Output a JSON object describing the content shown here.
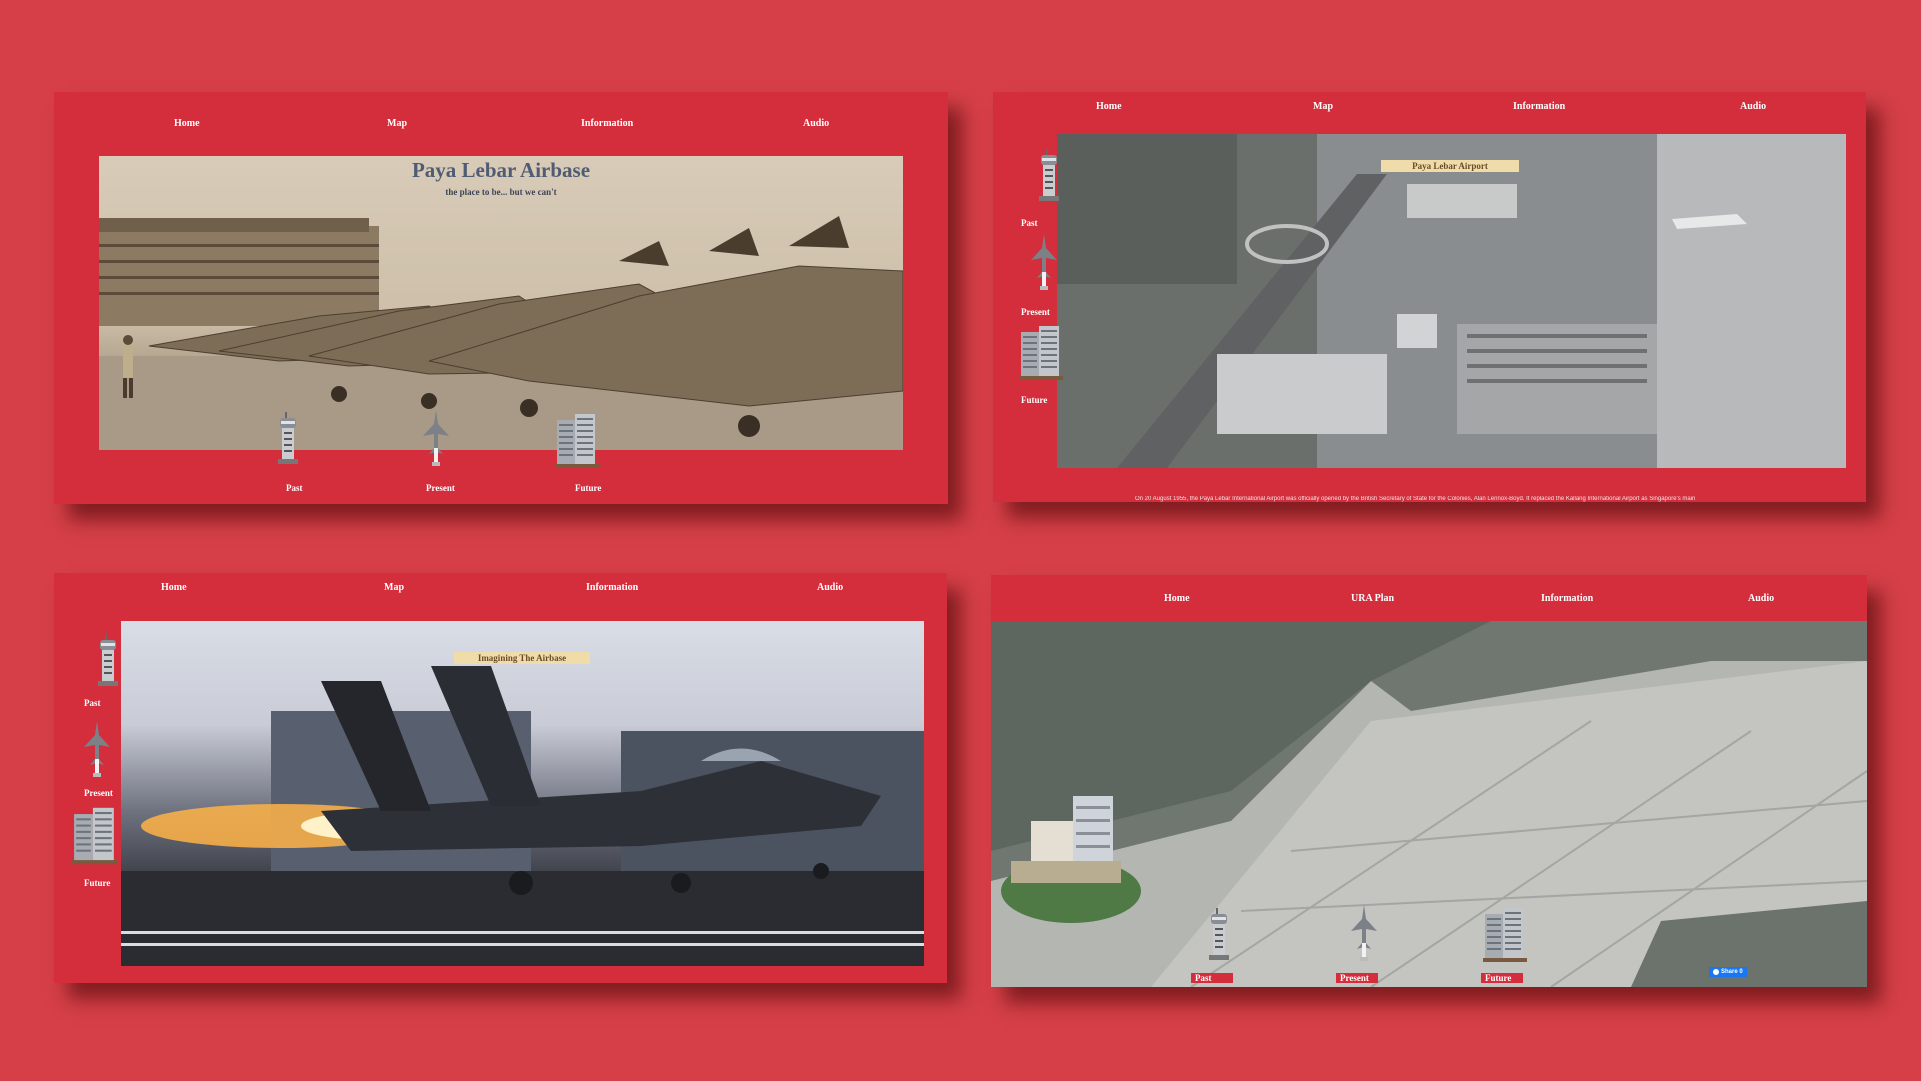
{
  "panel1": {
    "nav": [
      "Home",
      "Map",
      "Information",
      "Audio"
    ],
    "title": "Paya Lebar Airbase",
    "subtitle": "the place to be... but we can't",
    "icons": [
      "Past",
      "Present",
      "Future"
    ]
  },
  "panel2": {
    "nav": [
      "Home",
      "Map",
      "Information",
      "Audio"
    ],
    "banner": "Paya Lebar Airport",
    "icons": [
      "Past",
      "Present",
      "Future"
    ],
    "caption": "On 20 August 1955, the Paya Lebar International Airport was officially opened by the British Secretary of State for the Colonies, Alan Lennox-Boyd. It replaced the Kallang International Airport as Singapore's main"
  },
  "panel3": {
    "nav": [
      "Home",
      "Map",
      "Information",
      "Audio"
    ],
    "banner": "Imagining The Airbase",
    "icons": [
      "Past",
      "Present",
      "Future"
    ]
  },
  "panel4": {
    "nav": [
      "Home",
      "URA Plan",
      "Information",
      "Audio"
    ],
    "icons": [
      "Past",
      "Present",
      "Future"
    ],
    "share": "Share 0"
  },
  "colors": {
    "background": "#d63f47",
    "panel": "#d42d3c",
    "banner": "#f0dca8",
    "share_button": "#1877f2"
  },
  "icon_names": [
    "tower-icon",
    "jet-icon",
    "building-icon"
  ]
}
